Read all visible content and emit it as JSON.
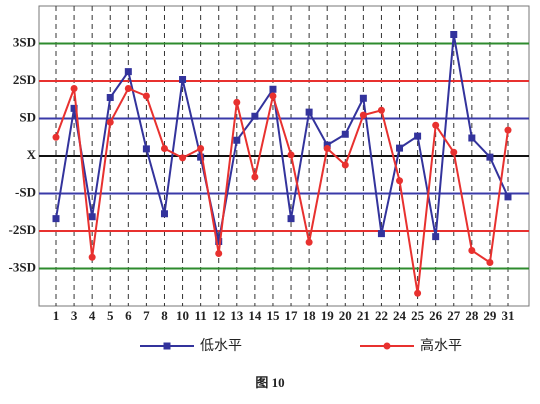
{
  "chart_data": {
    "type": "line",
    "caption": "图 10",
    "categories": [
      "1",
      "3",
      "4",
      "5",
      "6",
      "7",
      "8",
      "10",
      "11",
      "12",
      "13",
      "14",
      "15",
      "17",
      "18",
      "19",
      "20",
      "21",
      "22",
      "24",
      "25",
      "26",
      "27",
      "28",
      "29",
      "31"
    ],
    "ylim": [
      -4,
      4
    ],
    "yticks": [
      {
        "value": 3,
        "label": "3SD"
      },
      {
        "value": 2,
        "label": "2SD"
      },
      {
        "value": 1,
        "label": "SD"
      },
      {
        "value": 0,
        "label": "X"
      },
      {
        "value": -1,
        "label": "-SD"
      },
      {
        "value": -2,
        "label": "-2SD"
      },
      {
        "value": -3,
        "label": "-3SD"
      }
    ],
    "ytick_line_colors": [
      "#2e8b2e",
      "#e8312f",
      "#3a3aa8",
      "#111111",
      "#3a3aa8",
      "#e8312f",
      "#2e8b2e"
    ],
    "grid": true,
    "series": [
      {
        "name": "低水平",
        "color": "#33339c",
        "marker": "square",
        "values": [
          -1.67,
          1.27,
          -1.62,
          1.56,
          2.25,
          0.19,
          -1.54,
          2.04,
          -0.03,
          -2.28,
          0.42,
          1.06,
          1.78,
          -1.67,
          1.17,
          0.29,
          0.58,
          1.54,
          -2.07,
          0.21,
          0.53,
          -2.15,
          3.24,
          0.48,
          -0.03,
          -1.09
        ]
      },
      {
        "name": "高水平",
        "color": "#e8312f",
        "marker": "circle",
        "values": [
          0.5,
          1.8,
          -2.7,
          0.9,
          1.8,
          1.6,
          0.2,
          -0.05,
          0.2,
          -2.6,
          1.43,
          -0.56,
          1.6,
          0.03,
          -2.3,
          0.2,
          -0.24,
          1.09,
          1.22,
          -0.66,
          -3.66,
          0.82,
          0.1,
          -2.52,
          -2.84,
          0.69
        ]
      }
    ]
  }
}
